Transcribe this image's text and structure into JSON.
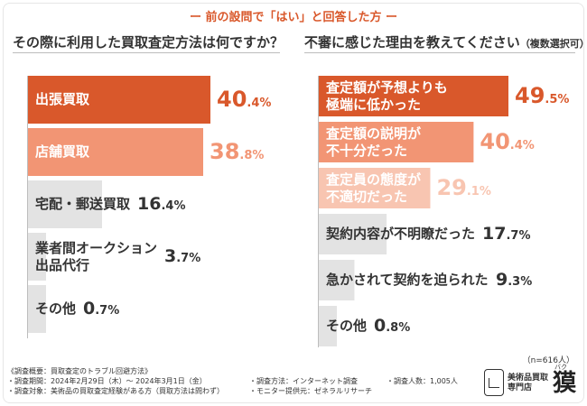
{
  "header": "ー 前の設問で「はい」と回答した方 ー",
  "left_title": "その際に利用した買取査定方法は何ですか？",
  "right_title_main": "不審に感じた理由を教えてください",
  "right_title_note": "（複数選択可）",
  "sample_note": "（n=616人）",
  "colors": {
    "accent": "#d9582b",
    "mid": "#f29574",
    "light": "#f8c5b1",
    "gray": "#e3e3e3",
    "text": "#333333"
  },
  "chart_data": [
    {
      "type": "bar",
      "orientation": "horizontal",
      "title": "その際に利用した買取査定方法は何ですか？",
      "unit": "%",
      "xlim": [
        0,
        40.4
      ],
      "categories": [
        "出張買取",
        "店舗買取",
        "宅配・郵送買取",
        "業者間オークション出品代行",
        "その他"
      ],
      "label_lines": [
        [
          "出張買取"
        ],
        [
          "店舗買取"
        ],
        [
          "宅配・郵送買取"
        ],
        [
          "業者間オークション",
          "出品代行"
        ],
        [
          "その他"
        ]
      ],
      "values": [
        40.4,
        38.8,
        16.4,
        3.7,
        0.7
      ],
      "int_parts": [
        "40",
        "38",
        "16",
        "3",
        "0"
      ],
      "dec_parts": [
        ".4",
        ".8",
        ".4",
        ".7",
        ".7"
      ],
      "colors": [
        "#d9582b",
        "#f29574",
        "#e3e3e3",
        "#e3e3e3",
        "#e3e3e3"
      ],
      "label_colors": [
        "#ffffff",
        "#ffffff",
        "#333333",
        "#333333",
        "#333333"
      ],
      "value_colors": [
        "#d9582b",
        "#f29574",
        "#333333",
        "#333333",
        "#333333"
      ]
    },
    {
      "type": "bar",
      "orientation": "horizontal",
      "title": "不審に感じた理由を教えてください（複数選択可）",
      "unit": "%",
      "xlim": [
        0,
        49.5
      ],
      "categories": [
        "査定額が予想よりも極端に低かった",
        "査定額の説明が不十分だった",
        "査定員の態度が不適切だった",
        "契約内容が不明瞭だった",
        "急かされて契約を迫られた",
        "その他"
      ],
      "label_lines": [
        [
          "査定額が予想よりも",
          "極端に低かった"
        ],
        [
          "査定額の説明が",
          "不十分だった"
        ],
        [
          "査定員の態度が",
          "不適切だった"
        ],
        [
          "契約内容が不明瞭だった"
        ],
        [
          "急かされて契約を迫られた"
        ],
        [
          "その他"
        ]
      ],
      "values": [
        49.5,
        40.4,
        29.1,
        17.7,
        9.3,
        0.8
      ],
      "int_parts": [
        "49",
        "40",
        "29",
        "17",
        "9",
        "0"
      ],
      "dec_parts": [
        ".5",
        ".4",
        ".1",
        ".7",
        ".3",
        ".8"
      ],
      "colors": [
        "#d9582b",
        "#f29574",
        "#f8c5b1",
        "#e3e3e3",
        "#e3e3e3",
        "#e3e3e3"
      ],
      "label_colors": [
        "#ffffff",
        "#ffffff",
        "#ffffff",
        "#333333",
        "#333333",
        "#333333"
      ],
      "value_colors": [
        "#d9582b",
        "#f29574",
        "#f8c5b1",
        "#333333",
        "#333333",
        "#333333"
      ]
    }
  ],
  "footer": {
    "overview": "《調査概要：買取査定のトラブル回避方法》",
    "period": "・調査期間：2024年2月29日（木）～ 2024年3月1日（金）",
    "target": "・調査対象：美術品の買取査定経験がある方（買取方法は問わず）",
    "method": "・調査方法：インターネット調査",
    "monitor": "・モニター提供元：ゼネラルリサーチ",
    "people": "・調査人数：1,005人"
  },
  "logo": {
    "line1": "美術品買取",
    "line2": "専門店",
    "kanji": "獏",
    "ruby": "バク"
  }
}
